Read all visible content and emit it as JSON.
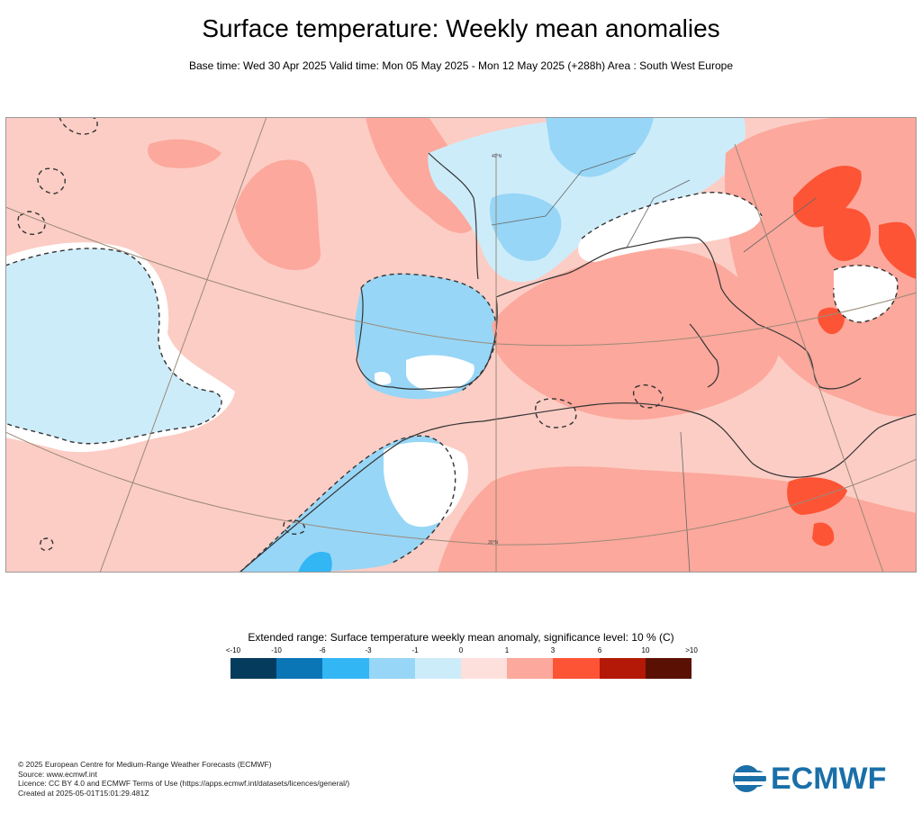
{
  "title": "Surface temperature: Weekly mean anomalies",
  "subtitle": "Base time: Wed 30 Apr 2025 Valid time: Mon 05 May 2025 - Mon 12 May 2025 (+288h) Area : South West Europe",
  "map": {
    "graticule_labels": [
      "40°N",
      "30°N"
    ]
  },
  "legend": {
    "title": "Extended range: Surface temperature weekly mean anomaly, significance level: 10 % (C)",
    "tick_labels": [
      "<-10",
      "-10",
      "-6",
      "-3",
      "-1",
      "0",
      "1",
      "3",
      "6",
      "10",
      ">10"
    ],
    "colors": [
      "#053b5c",
      "#0b76b6",
      "#32b6f4",
      "#97d6f6",
      "#cdecfa",
      "#fde0dc",
      "#fca89c",
      "#fd5436",
      "#b31906",
      "#5b1004"
    ]
  },
  "footer": {
    "line1": "© 2025 European Centre for Medium-Range Weather Forecasts (ECMWF)",
    "line2": "Source: www.ecmwf.int",
    "line3": "Licence: CC BY 4.0 and ECMWF Terms of Use (https://apps.ecmwf.int/datasets/licences/general/)",
    "line4": "Created at 2025-05-01T15:01:29.481Z"
  },
  "logo": {
    "text": "ECMWF",
    "color": "#1a6fa8"
  }
}
